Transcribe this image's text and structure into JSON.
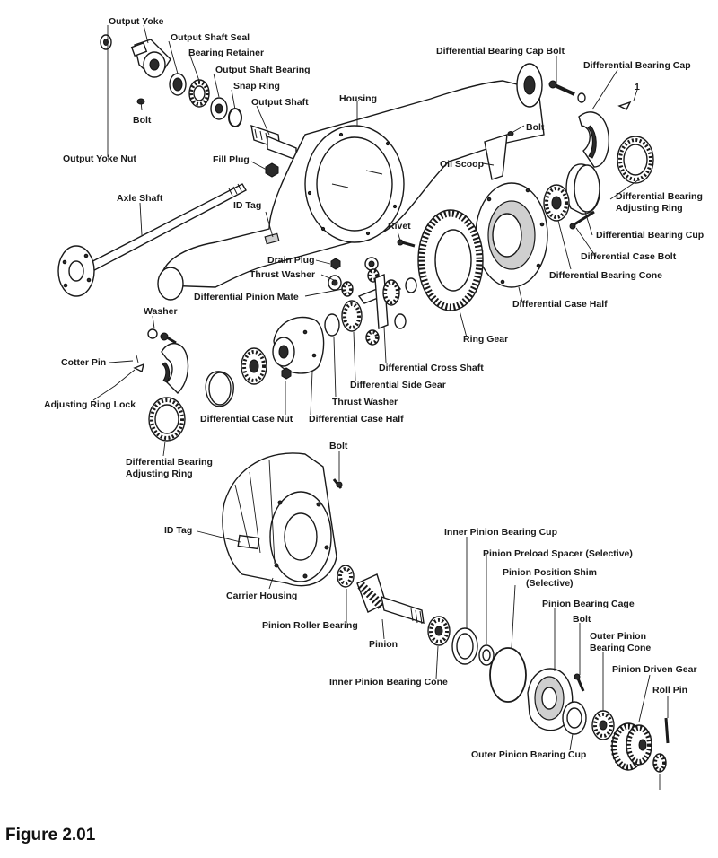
{
  "figure_caption": "Figure 2.01",
  "labels": {
    "output_yoke": "Output Yoke",
    "output_shaft_seal": "Output Shaft Seal",
    "bearing_retainer": "Bearing Retainer",
    "output_shaft_bearing": "Output Shaft Bearing",
    "snap_ring": "Snap Ring",
    "output_shaft": "Output Shaft",
    "bolt_top": "Bolt",
    "output_yoke_nut": "Output Yoke Nut",
    "fill_plug": "Fill Plug",
    "housing": "Housing",
    "axle_shaft": "Axle Shaft",
    "id_tag_top": "ID Tag",
    "diff_bearing_cap_bolt": "Differential Bearing Cap Bolt",
    "diff_bearing_cap": "Differential Bearing Cap",
    "numeral_one": "1",
    "bolt_scoop": "Bolt",
    "oil_scoop": "Oil Scoop",
    "diff_bearing_adjusting_ring_top": "Differential Bearing\nAdjusting Ring",
    "diff_bearing_cup": "Differential Bearing Cup",
    "diff_case_bolt": "Differential Case Bolt",
    "diff_bearing_cone": "Differential Bearing Cone",
    "diff_case_half_top": "Differential Case Half",
    "rivet": "Rivet",
    "drain_plug": "Drain Plug",
    "thrust_washer_top": "Thrust Washer",
    "diff_pinion_mate": "Differential Pinion Mate",
    "ring_gear": "Ring Gear",
    "washer": "Washer",
    "cotter_pin": "Cotter Pin",
    "adjusting_ring_lock": "Adjusting Ring Lock",
    "diff_cross_shaft": "Differential Cross Shaft",
    "diff_side_gear": "Differential Side Gear",
    "thrust_washer_bottom": "Thrust Washer",
    "diff_case_nut": "Differential Case Nut",
    "diff_case_half_bottom": "Differential Case Half",
    "diff_bearing_adjusting_ring_bottom": "Differential Bearing\nAdjusting Ring",
    "bolt_carrier": "Bolt",
    "id_tag_carrier": "ID Tag",
    "carrier_housing": "Carrier Housing",
    "pinion_roller_bearing": "Pinion Roller Bearing",
    "pinion": "Pinion",
    "inner_pinion_bearing_cone": "Inner Pinion Bearing Cone",
    "inner_pinion_bearing_cup": "Inner Pinion Bearing Cup",
    "pinion_preload_spacer": "Pinion Preload Spacer (Selective)",
    "pinion_position_shim": "Pinion Position Shim\n(Selective)",
    "pinion_bearing_cage": "Pinion Bearing Cage",
    "bolt_cage": "Bolt",
    "outer_pinion_bearing_cone": "Outer Pinion\nBearing Cone",
    "pinion_driven_gear": "Pinion Driven Gear",
    "roll_pin": "Roll Pin",
    "outer_pinion_bearing_cup": "Outer Pinion Bearing Cup"
  }
}
